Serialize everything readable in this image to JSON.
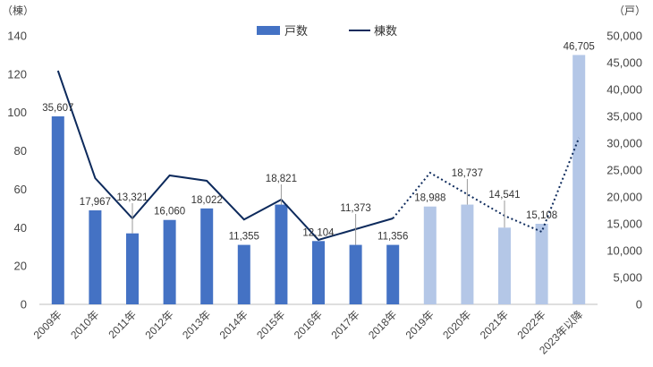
{
  "chart_data": {
    "type": "bar",
    "categories": [
      "2009年",
      "2010年",
      "2011年",
      "2012年",
      "2013年",
      "2014年",
      "2015年",
      "2016年",
      "2017年",
      "2018年",
      "2019年",
      "2020年",
      "2021年",
      "2022年",
      "2023年以降"
    ],
    "y_left_unit": "（棟）",
    "y_right_unit": "（戸）",
    "y_left_range": [
      0,
      140
    ],
    "y_left_ticks": [
      "0",
      "20",
      "40",
      "60",
      "80",
      "100",
      "120",
      "140"
    ],
    "y_right_range": [
      0,
      50000
    ],
    "y_right_ticks": [
      "0",
      "5,000",
      "10,000",
      "15,000",
      "20,000",
      "25,000",
      "30,000",
      "35,000",
      "40,000",
      "45,000",
      "50,000"
    ],
    "legend": {
      "bar_label": "戸数",
      "line_label": "棟数",
      "placement": "top-center"
    },
    "colors": {
      "actual": "#4472c4",
      "forecast": "#b4c7e7",
      "line": "#0d2a5c",
      "axis": "#bfbfbf"
    },
    "actual_count": 10,
    "series": [
      {
        "name": "戸数",
        "axis": "left",
        "values": [
          98,
          49,
          37,
          44,
          50,
          31,
          52,
          33,
          31,
          31,
          51,
          52,
          40,
          42,
          130
        ],
        "labels": [
          "35,607",
          "17,967",
          "13,321",
          "16,060",
          "18,022",
          "11,355",
          "18,821",
          "12,104",
          "11,373",
          "11,356",
          "18,988",
          "18,737",
          "14,541",
          "15,108",
          "46,705"
        ]
      },
      {
        "name": "棟数",
        "axis": "right",
        "values": [
          43500,
          23500,
          16000,
          24000,
          23000,
          15800,
          19500,
          12000,
          14000,
          16000,
          24500,
          20500,
          16500,
          13500,
          31000
        ]
      }
    ]
  }
}
